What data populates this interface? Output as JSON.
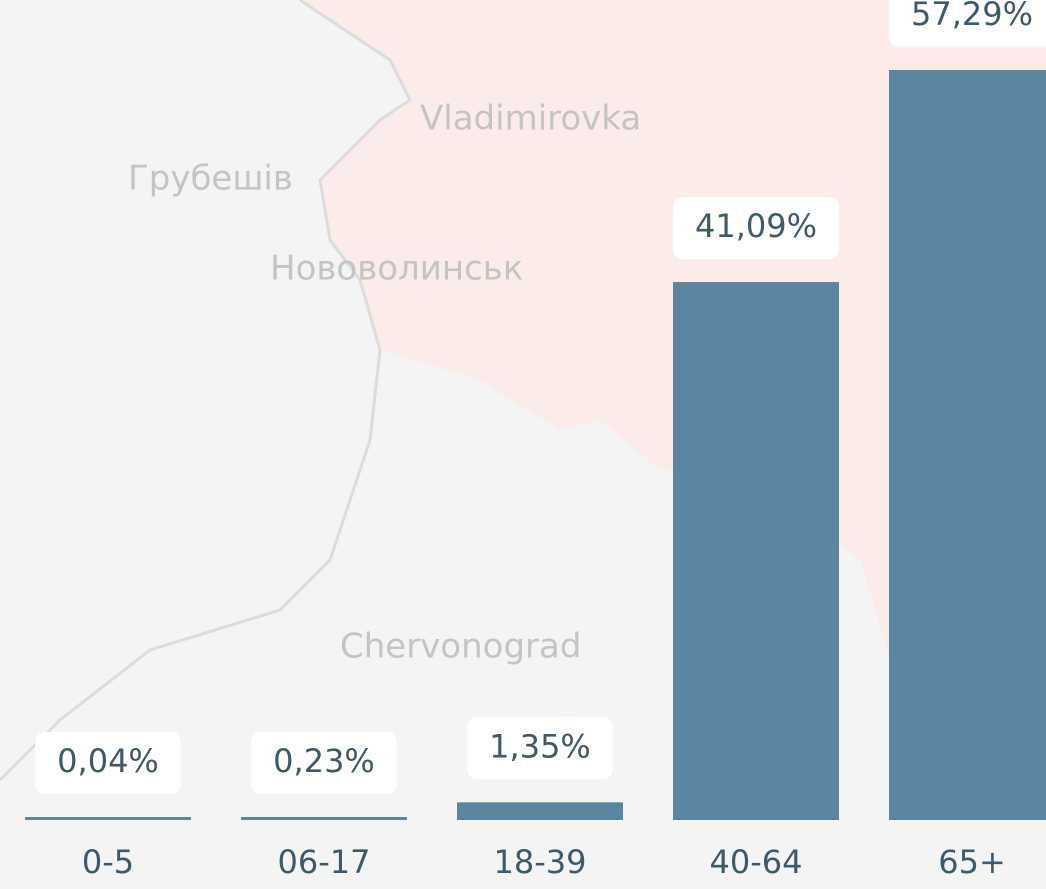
{
  "chart_data": {
    "type": "bar",
    "categories": [
      "0-5",
      "06-17",
      "18-39",
      "40-64",
      "65+"
    ],
    "values": [
      0.04,
      0.23,
      1.35,
      41.09,
      57.29
    ],
    "value_labels": [
      "0,04%",
      "0,23%",
      "1,35%",
      "41,09%",
      "57,29%"
    ],
    "color": "#5b85a0"
  },
  "map_labels": [
    "Vladimirovka",
    "Грубешів",
    "Нововолинськ",
    "Chervonograd"
  ]
}
